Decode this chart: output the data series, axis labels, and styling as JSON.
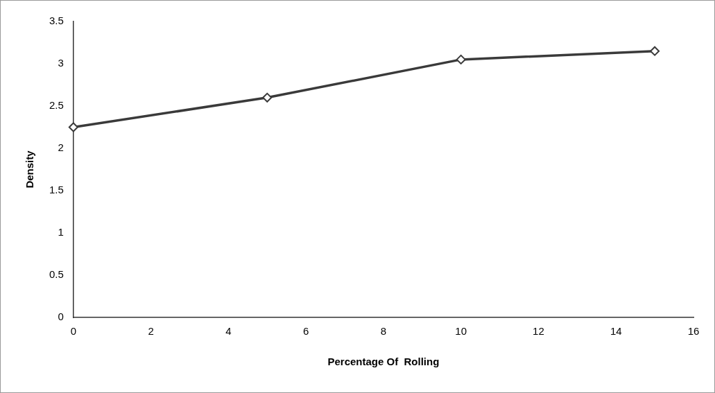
{
  "chart_data": {
    "type": "line",
    "xlabel": "Percentage Of  Rolling",
    "ylabel": "Density",
    "x": [
      0,
      5,
      10,
      15
    ],
    "series": [
      {
        "color": "#3a3a3a",
        "values": [
          2.25,
          2.6,
          3.05,
          3.15
        ]
      }
    ],
    "xlim": [
      0,
      16
    ],
    "xticks": [
      0,
      2,
      4,
      6,
      8,
      10,
      12,
      14,
      16
    ],
    "ylim": [
      0,
      3.5
    ],
    "yticks": [
      0,
      0.5,
      1,
      1.5,
      2,
      2.5,
      3,
      3.5
    ],
    "grid": false,
    "legend": false,
    "marker": "diamond",
    "line_style": "solid"
  }
}
